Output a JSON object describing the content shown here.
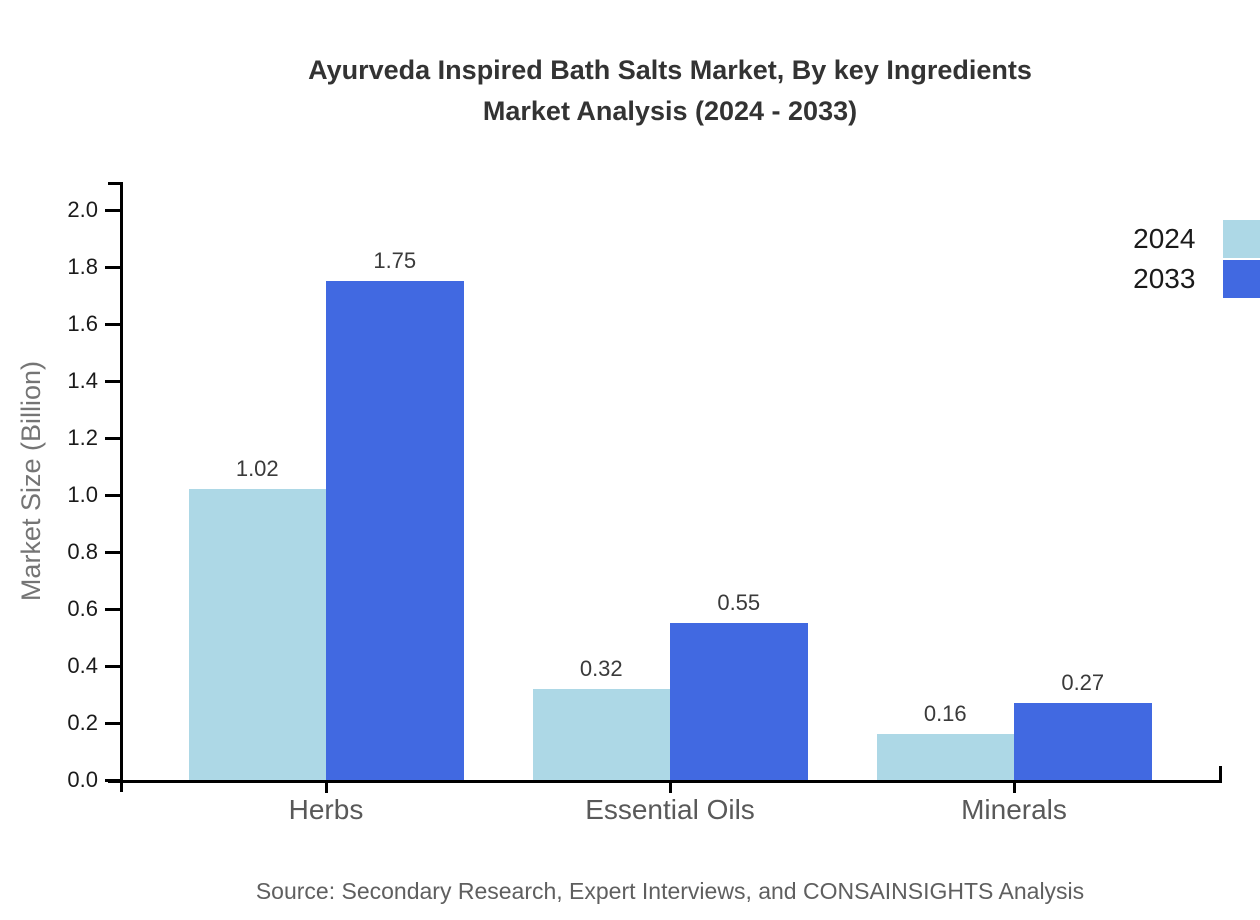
{
  "title": {
    "line1": "Ayurveda Inspired Bath Salts Market, By key Ingredients",
    "line2": "Market Analysis (2024 - 2033)"
  },
  "chart_data": {
    "type": "bar",
    "title": "Ayurveda Inspired Bath Salts Market, By key Ingredients Market Analysis (2024 - 2033)",
    "categories": [
      "Herbs",
      "Essential Oils",
      "Minerals"
    ],
    "series": [
      {
        "name": "2024",
        "color": "#ADD8E6",
        "values": [
          1.02,
          0.32,
          0.16
        ],
        "value_labels": [
          "1.02",
          "0.32",
          "0.16"
        ]
      },
      {
        "name": "2033",
        "color": "#4169E1",
        "values": [
          1.75,
          0.55,
          0.27
        ],
        "value_labels": [
          "1.75",
          "0.55",
          "0.27"
        ]
      }
    ],
    "xlabel": "",
    "ylabel": "Market Size (Billion)",
    "ylim": [
      0.0,
      2.0
    ],
    "y_ticks": [
      "0.0",
      "0.2",
      "0.4",
      "0.6",
      "0.8",
      "1.0",
      "1.2",
      "1.4",
      "1.6",
      "1.8",
      "2.0"
    ],
    "grid": false,
    "legend_position": "outside-right-top",
    "value_labels": true
  },
  "legend": {
    "items": [
      {
        "label": "2024",
        "color": "#ADD8E6"
      },
      {
        "label": "2033",
        "color": "#4169E1"
      }
    ]
  },
  "source": "Source: Secondary Research, Expert Interviews, and CONSAINSIGHTS Analysis"
}
